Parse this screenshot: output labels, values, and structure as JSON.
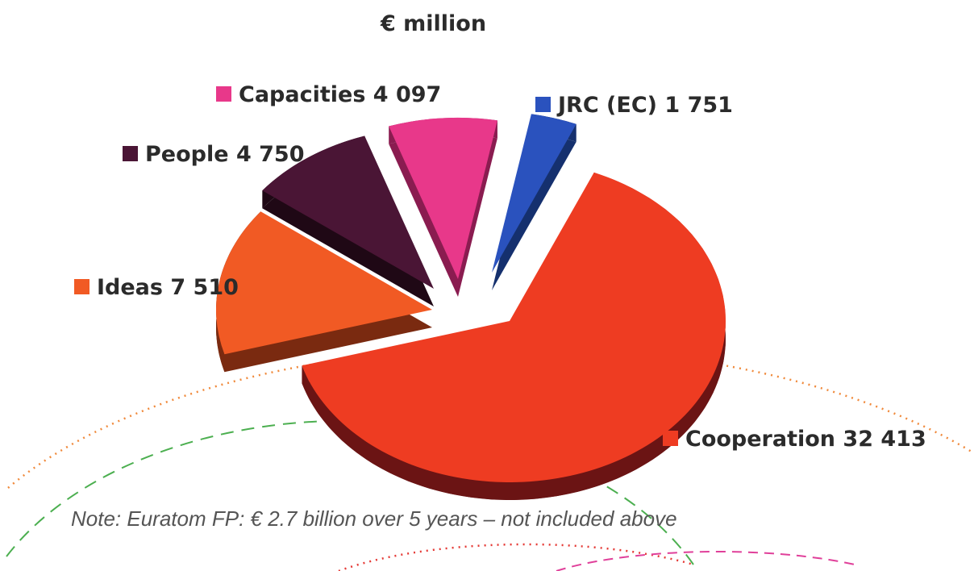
{
  "chart_data": {
    "type": "pie",
    "title": "€ million",
    "style": "3d-exploded",
    "slices": [
      {
        "label": "Cooperation",
        "value_text": "32 413",
        "value": 32413,
        "color": "#ee3c22",
        "side_color": "#6b1414"
      },
      {
        "label": "Ideas",
        "value_text": "7 510",
        "value": 7510,
        "color": "#f15a24",
        "side_color": "#7a2a10"
      },
      {
        "label": "People",
        "value_text": "4 750",
        "value": 4750,
        "color": "#4a1535",
        "side_color": "#1f0815"
      },
      {
        "label": "Capacities",
        "value_text": "4 097",
        "value": 4097,
        "color": "#e8388a",
        "side_color": "#8a1c50"
      },
      {
        "label": "JRC (EC)",
        "value_text": "1 751",
        "value": 1751,
        "color": "#2a52be",
        "side_color": "#15306e"
      }
    ],
    "note": "Note: Euratom FP: € 2.7 billion over 5 years – not included above"
  },
  "decor": {
    "arc_orange": "#f08a3c",
    "arc_green": "#4caf50",
    "arc_red": "#e53935",
    "arc_pink": "#e0409a"
  }
}
